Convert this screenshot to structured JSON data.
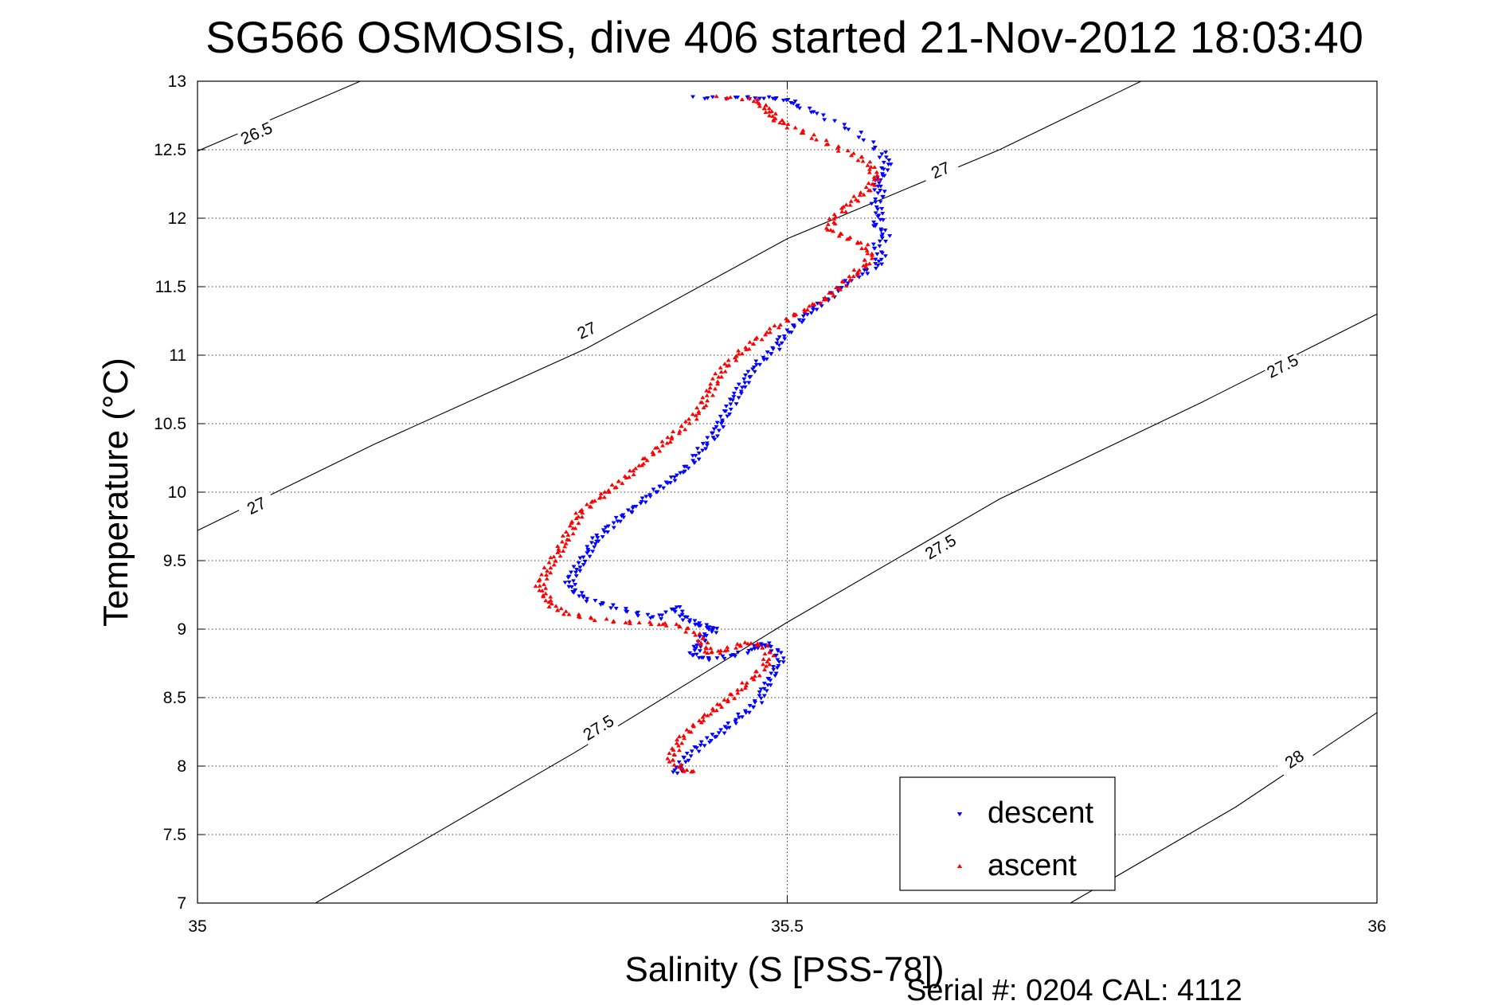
{
  "chart_data": {
    "type": "scatter",
    "title": "SG566 OSMOSIS, dive 406 started 21-Nov-2012 18:03:40",
    "xlabel": "Salinity (S [PSS-78])",
    "ylabel": "Temperature (°C)",
    "xlim": [
      35,
      36
    ],
    "ylim": [
      7,
      13
    ],
    "xticks": [
      "35",
      "35.5",
      "36"
    ],
    "yticks": [
      "7",
      "7.5",
      "8",
      "8.5",
      "9",
      "9.5",
      "10",
      "10.5",
      "11",
      "11.5",
      "12",
      "12.5",
      "13"
    ],
    "grid": true,
    "legend_position": "bottom-right",
    "footer": "Serial #: 0204  CAL: 4112",
    "density_contours": [
      {
        "label": "26.5",
        "points": [
          [
            35.0,
            12.49
          ],
          [
            35.138,
            13.0
          ]
        ],
        "label_at": [
          35.05,
          12.62
        ]
      },
      {
        "label": "27",
        "points": [
          [
            35.0,
            9.72
          ],
          [
            35.15,
            10.35
          ],
          [
            35.33,
            11.05
          ],
          [
            35.5,
            11.85
          ],
          [
            35.68,
            12.5
          ],
          [
            35.8,
            13.0
          ]
        ],
        "label_at_list": [
          [
            35.05,
            9.9
          ],
          [
            35.33,
            11.18
          ],
          [
            35.63,
            12.35
          ]
        ]
      },
      {
        "label": "27.5",
        "points": [
          [
            35.1,
            7.0
          ],
          [
            35.32,
            8.1
          ],
          [
            35.5,
            9.05
          ],
          [
            35.68,
            9.95
          ],
          [
            35.85,
            10.65
          ],
          [
            36.0,
            11.3
          ]
        ],
        "label_at_list": [
          [
            35.34,
            8.28
          ],
          [
            35.63,
            9.6
          ],
          [
            35.92,
            10.92
          ]
        ]
      },
      {
        "label": "28",
        "points": [
          [
            35.74,
            7.0
          ],
          [
            35.88,
            7.7
          ],
          [
            36.0,
            8.39
          ]
        ],
        "label_at": [
          35.93,
          8.05
        ]
      }
    ],
    "series": [
      {
        "name": "descent",
        "color": "#0000ff",
        "marker": "triangle-down",
        "points": [
          [
            35.42,
            12.88
          ],
          [
            35.46,
            12.88
          ],
          [
            35.48,
            12.88
          ],
          [
            35.5,
            12.87
          ],
          [
            35.51,
            12.82
          ],
          [
            35.53,
            12.75
          ],
          [
            35.56,
            12.62
          ],
          [
            35.58,
            12.48
          ],
          [
            35.585,
            12.4
          ],
          [
            35.58,
            12.32
          ],
          [
            35.575,
            12.25
          ],
          [
            35.58,
            12.18
          ],
          [
            35.575,
            12.1
          ],
          [
            35.58,
            12.02
          ],
          [
            35.575,
            11.95
          ],
          [
            35.585,
            11.88
          ],
          [
            35.575,
            11.8
          ],
          [
            35.58,
            11.72
          ],
          [
            35.575,
            11.65
          ],
          [
            35.56,
            11.58
          ],
          [
            35.545,
            11.5
          ],
          [
            35.535,
            11.42
          ],
          [
            35.525,
            11.35
          ],
          [
            35.515,
            11.28
          ],
          [
            35.505,
            11.2
          ],
          [
            35.495,
            11.12
          ],
          [
            35.49,
            11.05
          ],
          [
            35.48,
            10.98
          ],
          [
            35.47,
            10.9
          ],
          [
            35.465,
            10.82
          ],
          [
            35.46,
            10.75
          ],
          [
            35.455,
            10.68
          ],
          [
            35.45,
            10.6
          ],
          [
            35.445,
            10.52
          ],
          [
            35.44,
            10.45
          ],
          [
            35.435,
            10.38
          ],
          [
            35.425,
            10.3
          ],
          [
            35.42,
            10.22
          ],
          [
            35.41,
            10.15
          ],
          [
            35.4,
            10.08
          ],
          [
            35.39,
            10.02
          ],
          [
            35.38,
            9.95
          ],
          [
            35.37,
            9.88
          ],
          [
            35.36,
            9.82
          ],
          [
            35.35,
            9.75
          ],
          [
            35.34,
            9.68
          ],
          [
            35.335,
            9.62
          ],
          [
            35.33,
            9.55
          ],
          [
            35.325,
            9.48
          ],
          [
            35.32,
            9.42
          ],
          [
            35.315,
            9.35
          ],
          [
            35.32,
            9.28
          ],
          [
            35.33,
            9.22
          ],
          [
            35.35,
            9.17
          ],
          [
            35.37,
            9.12
          ],
          [
            35.39,
            9.08
          ],
          [
            35.405,
            9.17
          ],
          [
            35.41,
            9.1
          ],
          [
            35.42,
            9.05
          ],
          [
            35.43,
            9.02
          ],
          [
            35.44,
            9.0
          ],
          [
            35.43,
            8.95
          ],
          [
            35.425,
            8.88
          ],
          [
            35.42,
            8.82
          ],
          [
            35.43,
            8.78
          ],
          [
            35.45,
            8.8
          ],
          [
            35.47,
            8.85
          ],
          [
            35.48,
            8.9
          ],
          [
            35.49,
            8.85
          ],
          [
            35.495,
            8.78
          ],
          [
            35.49,
            8.7
          ],
          [
            35.485,
            8.62
          ],
          [
            35.48,
            8.55
          ],
          [
            35.475,
            8.47
          ],
          [
            35.465,
            8.4
          ],
          [
            35.455,
            8.33
          ],
          [
            35.445,
            8.26
          ],
          [
            35.435,
            8.2
          ],
          [
            35.425,
            8.14
          ],
          [
            35.415,
            8.07
          ],
          [
            35.41,
            8.0
          ],
          [
            35.405,
            7.95
          ]
        ]
      },
      {
        "name": "ascent",
        "color": "#ff0000",
        "marker": "triangle-up",
        "points": [
          [
            35.44,
            12.88
          ],
          [
            35.47,
            12.87
          ],
          [
            35.48,
            12.82
          ],
          [
            35.485,
            12.78
          ],
          [
            35.49,
            12.72
          ],
          [
            35.5,
            12.68
          ],
          [
            35.52,
            12.6
          ],
          [
            35.54,
            12.52
          ],
          [
            35.56,
            12.45
          ],
          [
            35.57,
            12.38
          ],
          [
            35.575,
            12.3
          ],
          [
            35.57,
            12.22
          ],
          [
            35.56,
            12.15
          ],
          [
            35.55,
            12.08
          ],
          [
            35.54,
            12.0
          ],
          [
            35.535,
            11.92
          ],
          [
            35.55,
            11.86
          ],
          [
            35.565,
            11.8
          ],
          [
            35.57,
            11.72
          ],
          [
            35.565,
            11.65
          ],
          [
            35.555,
            11.58
          ],
          [
            35.545,
            11.5
          ],
          [
            35.535,
            11.42
          ],
          [
            35.52,
            11.35
          ],
          [
            35.505,
            11.28
          ],
          [
            35.49,
            11.2
          ],
          [
            35.475,
            11.12
          ],
          [
            35.465,
            11.05
          ],
          [
            35.455,
            10.98
          ],
          [
            35.445,
            10.9
          ],
          [
            35.44,
            10.82
          ],
          [
            35.435,
            10.74
          ],
          [
            35.43,
            10.66
          ],
          [
            35.425,
            10.58
          ],
          [
            35.415,
            10.5
          ],
          [
            35.405,
            10.42
          ],
          [
            35.395,
            10.35
          ],
          [
            35.385,
            10.28
          ],
          [
            35.375,
            10.2
          ],
          [
            35.365,
            10.12
          ],
          [
            35.355,
            10.05
          ],
          [
            35.345,
            9.98
          ],
          [
            35.335,
            9.92
          ],
          [
            35.325,
            9.85
          ],
          [
            35.32,
            9.78
          ],
          [
            35.315,
            9.7
          ],
          [
            35.31,
            9.62
          ],
          [
            35.305,
            9.55
          ],
          [
            35.3,
            9.48
          ],
          [
            35.295,
            9.4
          ],
          [
            35.29,
            9.32
          ],
          [
            35.295,
            9.25
          ],
          [
            35.3,
            9.18
          ],
          [
            35.31,
            9.12
          ],
          [
            35.33,
            9.08
          ],
          [
            35.36,
            9.05
          ],
          [
            35.39,
            9.04
          ],
          [
            35.41,
            9.02
          ],
          [
            35.425,
            8.95
          ],
          [
            35.43,
            8.88
          ],
          [
            35.435,
            8.82
          ],
          [
            35.45,
            8.85
          ],
          [
            35.465,
            8.9
          ],
          [
            35.48,
            8.88
          ],
          [
            35.485,
            8.8
          ],
          [
            35.48,
            8.72
          ],
          [
            35.47,
            8.64
          ],
          [
            35.46,
            8.56
          ],
          [
            35.45,
            8.49
          ],
          [
            35.44,
            8.42
          ],
          [
            35.43,
            8.35
          ],
          [
            35.42,
            8.28
          ],
          [
            35.41,
            8.2
          ],
          [
            35.405,
            8.12
          ],
          [
            35.4,
            8.05
          ],
          [
            35.41,
            7.98
          ],
          [
            35.42,
            7.95
          ]
        ]
      }
    ]
  }
}
